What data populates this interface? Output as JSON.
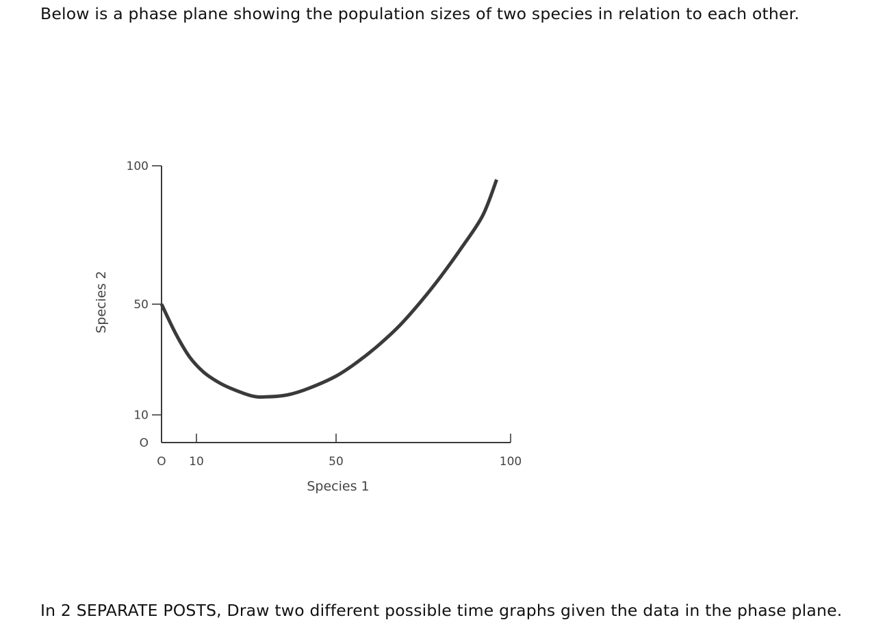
{
  "intro_text": "Below is a phase plane showing the population sizes of two species in relation to each other.",
  "instruction_text": "In 2 SEPARATE POSTS, Draw two different possible time graphs given the data in the phase plane.",
  "colors": {
    "curve": "#3a3a3a",
    "axis": "#3a3a3a",
    "text": "#111111",
    "tick_text": "#444444"
  },
  "chart_data": {
    "type": "line",
    "title": "",
    "xlabel": "Species 1",
    "ylabel": "Species 2",
    "xlim": [
      0,
      100
    ],
    "ylim": [
      0,
      100
    ],
    "x_ticks": [
      {
        "value": 0,
        "label": "O"
      },
      {
        "value": 10,
        "label": "10"
      },
      {
        "value": 50,
        "label": "50"
      },
      {
        "value": 100,
        "label": "100"
      }
    ],
    "y_ticks": [
      {
        "value": 0,
        "label": "O"
      },
      {
        "value": 10,
        "label": "10"
      },
      {
        "value": 50,
        "label": "50"
      },
      {
        "value": 100,
        "label": "100"
      }
    ],
    "grid": false,
    "legend": "none",
    "series": [
      {
        "x": [
          0,
          4,
          8,
          12,
          16,
          20,
          26,
          30,
          36,
          42,
          50,
          56,
          62,
          68,
          74,
          80,
          86,
          92,
          96
        ],
        "y": [
          50,
          39.5,
          31,
          25.5,
          22,
          19.5,
          16.8,
          16.5,
          17.2,
          19.5,
          24,
          29,
          35,
          42,
          50.5,
          60,
          70.5,
          82,
          95
        ]
      }
    ]
  }
}
